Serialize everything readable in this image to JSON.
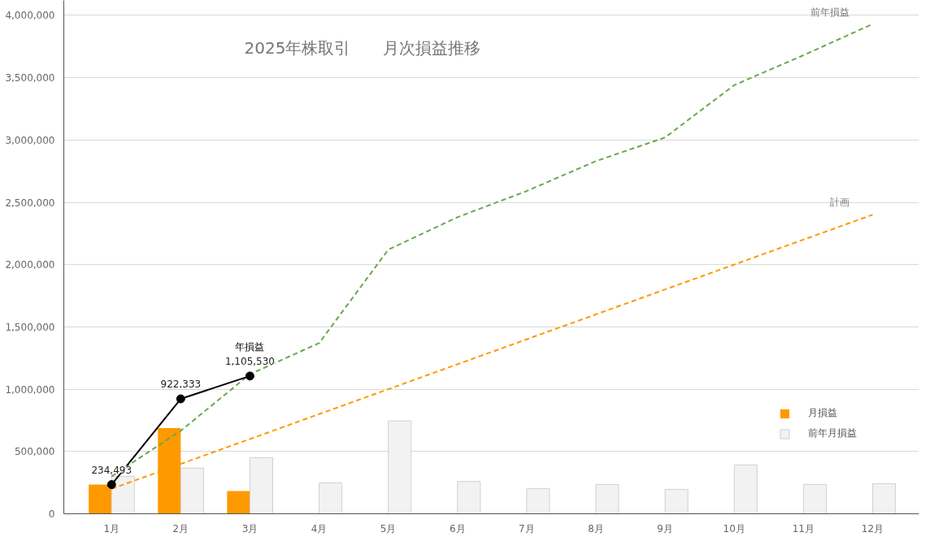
{
  "chart_data": {
    "type": "bar",
    "title": "2025年株取引　　月次損益推移",
    "categories": [
      "1月",
      "2月",
      "3月",
      "4月",
      "5月",
      "6月",
      "7月",
      "8月",
      "9月",
      "10月",
      "11月",
      "12月"
    ],
    "series": [
      {
        "name": "月損益",
        "color": "#ff9900",
        "values": [
          235000,
          688000,
          183000,
          null,
          null,
          null,
          null,
          null,
          null,
          null,
          null,
          null
        ]
      },
      {
        "name": "前年月損益",
        "color": "#f2f2f2",
        "values": [
          300000,
          366000,
          451000,
          248000,
          745000,
          259000,
          203000,
          235000,
          196000,
          392000,
          236000,
          242000
        ]
      },
      {
        "name": "前年損益",
        "type": "line",
        "color": "#6aa84f",
        "line_style": "dashed",
        "marker": "none",
        "values": [
          300000,
          666000,
          1120000,
          1370000,
          2120000,
          2380000,
          2590000,
          2830000,
          3020000,
          3440000,
          3680000,
          3930000
        ]
      },
      {
        "name": "計画",
        "type": "line",
        "color": "#ff9900",
        "line_style": "dashed",
        "marker": "none",
        "values": [
          200000,
          400000,
          600000,
          800000,
          1000000,
          1200000,
          1400000,
          1600000,
          1800000,
          2000000,
          2200000,
          2400000
        ]
      },
      {
        "name": "年損益",
        "type": "line",
        "color": "#000000",
        "line_style": "solid",
        "marker": "circle",
        "values": [
          234493,
          922333,
          1105530,
          null,
          null,
          null,
          null,
          null,
          null,
          null,
          null,
          null
        ],
        "value_labels": [
          "234,493",
          "922,333",
          "1,105,530",
          null,
          null,
          null,
          null,
          null,
          null,
          null,
          null,
          null
        ]
      }
    ],
    "ylim": [
      0,
      4120000
    ],
    "yticks": [
      {
        "value": 0,
        "label": "0"
      },
      {
        "value": 500000,
        "label": "500,000"
      },
      {
        "value": 1000000,
        "label": "1,000,000"
      },
      {
        "value": 1500000,
        "label": "1,500,000"
      },
      {
        "value": 2000000,
        "label": "2,000,000"
      },
      {
        "value": 2500000,
        "label": "2,500,000"
      },
      {
        "value": 3000000,
        "label": "3,000,000"
      },
      {
        "value": 3500000,
        "label": "3,500,000"
      },
      {
        "value": 4000000,
        "label": "4,000,000"
      }
    ],
    "grid": "y",
    "legend": "right"
  }
}
